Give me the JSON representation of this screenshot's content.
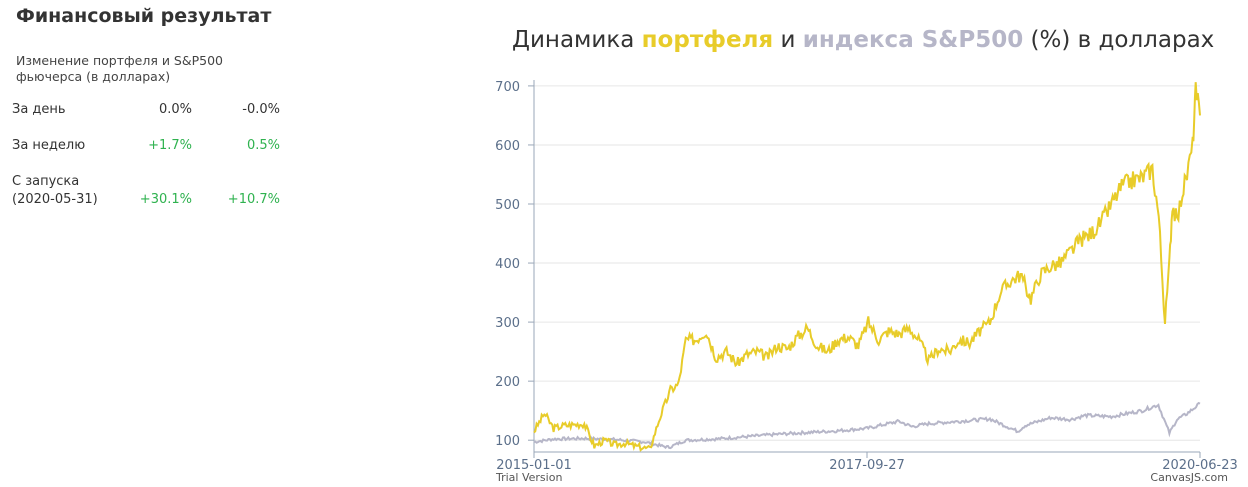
{
  "panel": {
    "title": "Финансовый результат",
    "description": "Изменение портфеля и S&P500 фьючерса (в долларах)",
    "rows": [
      {
        "label": "За день",
        "portfolio": "0.0%",
        "index": "-0.0%",
        "pos1": false,
        "pos2": false
      },
      {
        "label": "За неделю",
        "portfolio": "+1.7%",
        "index": "0.5%",
        "pos1": true,
        "pos2": true
      },
      {
        "label": "С запуска\n(2020-05-31)",
        "portfolio": "+30.1%",
        "index": "+10.7%",
        "pos1": true,
        "pos2": true
      }
    ]
  },
  "chart_title": {
    "part1": "Динамика ",
    "portfolio": "портфеля",
    "part2": " и ",
    "index": "индекса S&P500",
    "part3": " (%) в долларах"
  },
  "watermarks": {
    "left": "Trial Version",
    "right": "CanvasJS.com"
  },
  "chart_data": {
    "type": "line",
    "title": "Динамика портфеля и индекса S&P500 (%) в долларах",
    "x_tick_labels": [
      "2015-01-01",
      "2017-09-27",
      "2020-06-23"
    ],
    "xlim": [
      "2015-01-01",
      "2020-06-23"
    ],
    "ylim": [
      80,
      710
    ],
    "y_ticks": [
      100,
      200,
      300,
      400,
      500,
      600,
      700
    ],
    "grid": true,
    "colors": {
      "portfolio": "#e8cc2a",
      "index": "#b6b6c8"
    },
    "series": [
      {
        "name": "портфеля",
        "x": [
          "2015-01-01",
          "2015-02-01",
          "2015-03-01",
          "2015-04-01",
          "2015-06-01",
          "2015-07-01",
          "2015-08-01",
          "2015-09-01",
          "2015-10-01",
          "2015-11-01",
          "2015-12-15",
          "2016-01-15",
          "2016-02-15",
          "2016-03-10",
          "2016-04-01",
          "2016-05-01",
          "2016-06-01",
          "2016-07-01",
          "2016-08-01",
          "2016-09-01",
          "2016-10-01",
          "2016-11-01",
          "2016-12-01",
          "2017-01-01",
          "2017-02-01",
          "2017-03-01",
          "2017-04-01",
          "2017-05-01",
          "2017-06-01",
          "2017-07-01",
          "2017-08-01",
          "2017-09-01",
          "2017-10-01",
          "2017-11-01",
          "2017-12-01",
          "2018-01-01",
          "2018-02-01",
          "2018-03-01",
          "2018-04-01",
          "2018-05-01",
          "2018-06-01",
          "2018-07-01",
          "2018-08-01",
          "2018-09-01",
          "2018-10-01",
          "2018-11-01",
          "2018-12-01",
          "2019-01-01",
          "2019-02-01",
          "2019-03-01",
          "2019-04-01",
          "2019-05-01",
          "2019-06-01",
          "2019-07-01",
          "2019-08-01",
          "2019-09-01",
          "2019-10-01",
          "2019-11-01",
          "2019-12-01",
          "2020-01-01",
          "2020-02-01",
          "2020-02-20",
          "2020-03-10",
          "2020-03-23",
          "2020-04-01",
          "2020-04-15",
          "2020-05-01",
          "2020-05-15",
          "2020-06-01",
          "2020-06-10",
          "2020-06-23"
        ],
        "y": [
          115,
          145,
          120,
          125,
          128,
          90,
          100,
          92,
          95,
          90,
          85,
          140,
          185,
          195,
          270,
          270,
          285,
          240,
          250,
          230,
          245,
          250,
          240,
          260,
          255,
          275,
          290,
          260,
          250,
          270,
          275,
          260,
          300,
          270,
          285,
          280,
          290,
          270,
          235,
          255,
          250,
          270,
          265,
          285,
          300,
          350,
          370,
          380,
          340,
          380,
          395,
          400,
          420,
          440,
          450,
          470,
          500,
          530,
          540,
          545,
          560,
          480,
          300,
          400,
          500,
          470,
          520,
          550,
          600,
          690,
          650
        ]
      },
      {
        "name": "индекса S&P500",
        "x": [
          "2015-01-01",
          "2015-03-01",
          "2015-06-01",
          "2015-09-01",
          "2015-12-01",
          "2016-01-20",
          "2016-02-11",
          "2016-04-01",
          "2016-07-01",
          "2016-10-01",
          "2017-01-01",
          "2017-04-01",
          "2017-07-01",
          "2017-09-27",
          "2018-01-01",
          "2018-02-08",
          "2018-04-01",
          "2018-07-01",
          "2018-10-01",
          "2018-12-24",
          "2019-01-15",
          "2019-04-01",
          "2019-06-01",
          "2019-07-15",
          "2019-10-01",
          "2020-01-01",
          "2020-02-19",
          "2020-03-23",
          "2020-04-15",
          "2020-05-15",
          "2020-06-23"
        ],
        "y": [
          97,
          102,
          103,
          101,
          97,
          90,
          88,
          100,
          102,
          106,
          110,
          113,
          116,
          120,
          132,
          123,
          128,
          132,
          136,
          115,
          125,
          138,
          135,
          142,
          140,
          150,
          160,
          112,
          135,
          145,
          162
        ]
      }
    ]
  }
}
